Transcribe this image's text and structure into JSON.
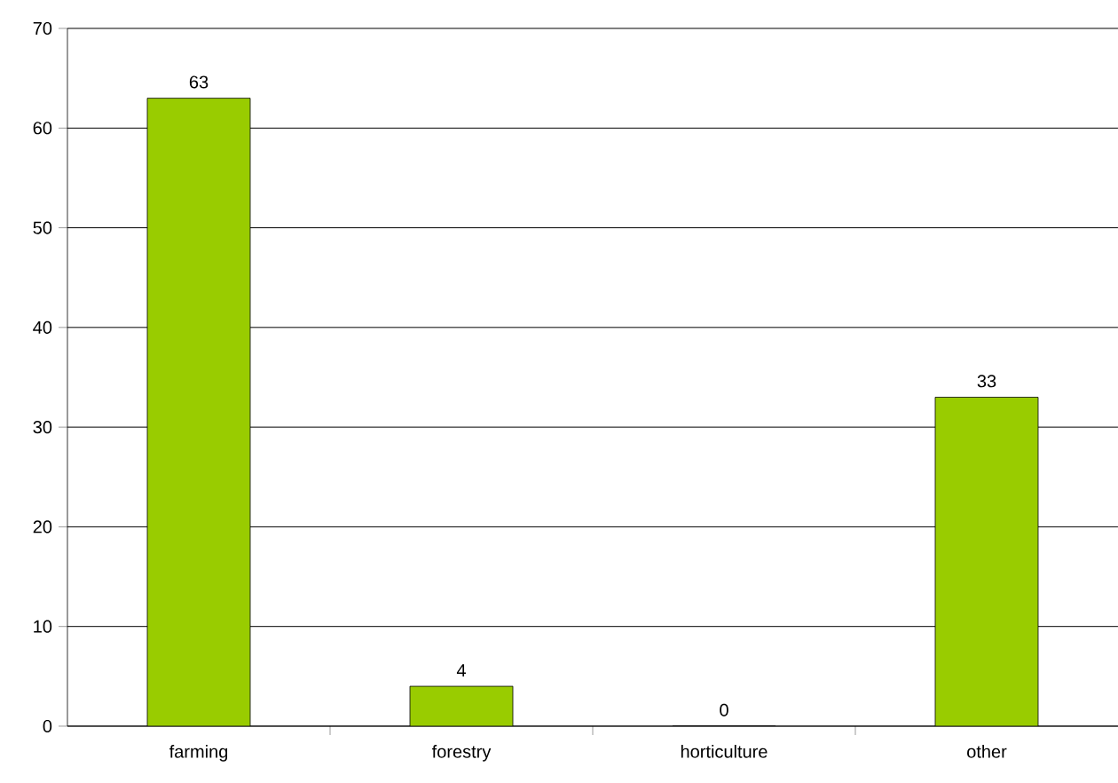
{
  "chart_data": {
    "type": "bar",
    "categories": [
      "farming",
      "forestry",
      "horticulture",
      "other"
    ],
    "values": [
      63,
      4,
      0,
      33
    ],
    "color": "#99cc00",
    "ylim": [
      0,
      70
    ],
    "yticks": [
      0,
      10,
      20,
      30,
      40,
      50,
      60,
      70
    ],
    "grid": "y",
    "data_labels": true
  }
}
